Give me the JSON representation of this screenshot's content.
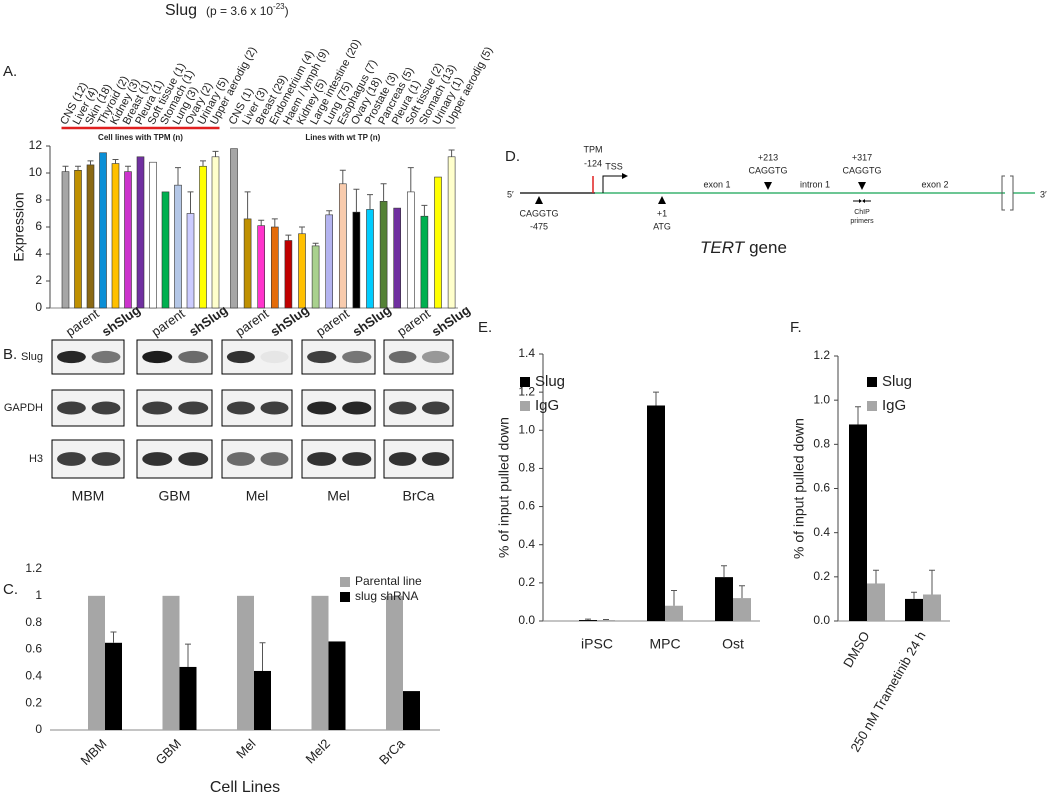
{
  "figure_title": {
    "name": "Slug",
    "stat": "(p = 3.6 x 10",
    "exponent": "-23",
    "close": ")"
  },
  "panel_labels": [
    "A.",
    "B.",
    "C.",
    "D.",
    "E.",
    "F."
  ],
  "chart_data": [
    {
      "type": "bar",
      "ylabel": "Expression",
      "ylim": [
        0,
        12
      ],
      "yticks": [
        0,
        2,
        4,
        6,
        8,
        10,
        12
      ],
      "groups": [
        {
          "label": "Cell lines with TPM (n)",
          "line_color": "#e02020",
          "categories": [
            "CNS (12)",
            "Liver (4)",
            "Skin (18)",
            "Thyroid (2)",
            "Kidney (3)",
            "Breast (1)",
            "Pleura (1)",
            "Soft tissue (1)",
            "Stomach (1)",
            "Lung (3)",
            "Ovary (2)",
            "Urinary (5)",
            "Upper aerodig (2)"
          ],
          "values": [
            10.1,
            10.2,
            10.6,
            11.5,
            10.7,
            10.1,
            11.2,
            10.8,
            8.6,
            9.1,
            7.0,
            10.5,
            11.2
          ],
          "errors": [
            0.4,
            0.3,
            0.3,
            null,
            0.3,
            0.4,
            null,
            null,
            null,
            1.3,
            1.6,
            0.4,
            0.4
          ],
          "colors": [
            "#a6a6a6",
            "#bf9000",
            "#8b6914",
            "#0b8fd6",
            "#ffc000",
            "#cc33cc",
            "#7030a0",
            "#ffffff",
            "#00b050",
            "#b4c7e7",
            "#ccccff",
            "#ffff00",
            "#ffffcc"
          ]
        },
        {
          "label": "Lines with wt TP (n)",
          "line_color": "#8c8c8c",
          "categories": [
            "CNS (1)",
            "Liver (3)",
            "Breast (29)",
            "Endometrium (4)",
            "Haem / lymph (9)",
            "Kidney (5)",
            "Large intestine (20)",
            "Lung (75)",
            "Esophagus (7)",
            "Ovary (18)",
            "Prostate (3)",
            "Pancreas (5)",
            "Pleura (1)",
            "Soft tissue (2)",
            "Stomach (13)",
            "Urinary (1)",
            "Upper aerodig (5)"
          ],
          "values": [
            11.8,
            6.6,
            6.1,
            6.0,
            5.0,
            5.5,
            4.6,
            6.9,
            9.2,
            7.1,
            7.3,
            7.9,
            7.4,
            8.6,
            6.8,
            9.7,
            11.2
          ],
          "errors": [
            null,
            2.0,
            0.4,
            0.6,
            0.4,
            0.5,
            0.2,
            0.3,
            1.0,
            1.7,
            1.1,
            1.3,
            null,
            1.8,
            0.8,
            null,
            0.5
          ],
          "colors": [
            "#a6a6a6",
            "#bf9000",
            "#ff33cc",
            "#e46c0a",
            "#c00000",
            "#ffc000",
            "#a9d18e",
            "#b4b4f0",
            "#f8cbad",
            "#000000",
            "#00ccff",
            "#548235",
            "#7030a0",
            "#ffffff",
            "#00b050",
            "#ffff00",
            "#ffffcc"
          ]
        }
      ]
    },
    {
      "type": "bar",
      "xlabel": "Cell Lines",
      "legend": "top-right",
      "categories": [
        "MBM",
        "GBM",
        "Mel",
        "Mel2",
        "BrCa"
      ],
      "series": [
        {
          "name": "Parental line",
          "color": "#a6a6a6",
          "values": [
            1,
            1,
            1,
            1,
            1
          ],
          "errors": [
            null,
            null,
            null,
            null,
            null
          ]
        },
        {
          "name": "slug shRNA",
          "color": "#000000",
          "values": [
            0.65,
            0.47,
            0.44,
            0.66,
            0.29
          ],
          "errors": [
            0.08,
            0.17,
            0.21,
            null,
            null
          ]
        }
      ],
      "ylim": [
        0,
        1.2
      ],
      "yticks": [
        0,
        0.2,
        0.4,
        0.6,
        0.8,
        1,
        1.2
      ]
    },
    {
      "type": "bar",
      "ylabel": "% of input pulled down",
      "legend": "top-left",
      "categories": [
        "iPSC",
        "MPC",
        "Ost"
      ],
      "series": [
        {
          "name": "Slug",
          "color": "#000000",
          "values": [
            0.005,
            1.13,
            0.23
          ],
          "errors": [
            0.005,
            0.07,
            0.06
          ]
        },
        {
          "name": "IgG",
          "color": "#a6a6a6",
          "values": [
            0.005,
            0.08,
            0.12
          ],
          "errors": [
            0.003,
            0.08,
            0.065
          ]
        }
      ],
      "ylim": [
        0,
        1.4
      ],
      "yticks": [
        {
          "value": 0,
          "label": "0.0"
        },
        0.2,
        0.4,
        0.6,
        0.8,
        {
          "value": 1,
          "label": "1.0"
        },
        1.2,
        1.4
      ]
    },
    {
      "type": "bar",
      "ylabel": "% of input pulled down",
      "legend": "top-right",
      "categories": [
        "DMSO",
        "250 nM Trametinib 24 h"
      ],
      "series": [
        {
          "name": "Slug",
          "color": "#000000",
          "values": [
            0.89,
            0.1
          ],
          "errors": [
            0.08,
            0.03
          ]
        },
        {
          "name": "IgG",
          "color": "#a6a6a6",
          "values": [
            0.17,
            0.12
          ],
          "errors": [
            0.06,
            0.11
          ]
        }
      ],
      "ylim": [
        0,
        1.2
      ],
      "yticks": [
        {
          "value": 0,
          "label": "0.0"
        },
        0.2,
        0.4,
        0.6,
        0.8,
        {
          "value": 1,
          "label": "1.0"
        },
        1.2
      ]
    }
  ],
  "blots": {
    "lanes": [
      "parent",
      "shSlug"
    ],
    "rows": [
      "Slug",
      "GAPDH",
      "H3"
    ],
    "cell_lines": [
      "MBM",
      "GBM",
      "Mel",
      "Mel",
      "BrCa"
    ]
  },
  "diagram": {
    "end5": "5′",
    "end3": "3′",
    "site1": "CAGGTG",
    "site1_pos": "-475",
    "tpm": "TPM",
    "tpm_pos": "-124",
    "tss": "TSS",
    "start": "+1",
    "atg": "ATG",
    "exon1": "exon 1",
    "site2_pos": "+213",
    "site2": "CAGGTG",
    "intron1": "intron 1",
    "site3_pos": "+317",
    "site3": "CAGGTG",
    "chip": "ChIP",
    "primers": "primers",
    "exon2": "exon 2",
    "gene_name": "TERT",
    "gene_word": "gene"
  }
}
